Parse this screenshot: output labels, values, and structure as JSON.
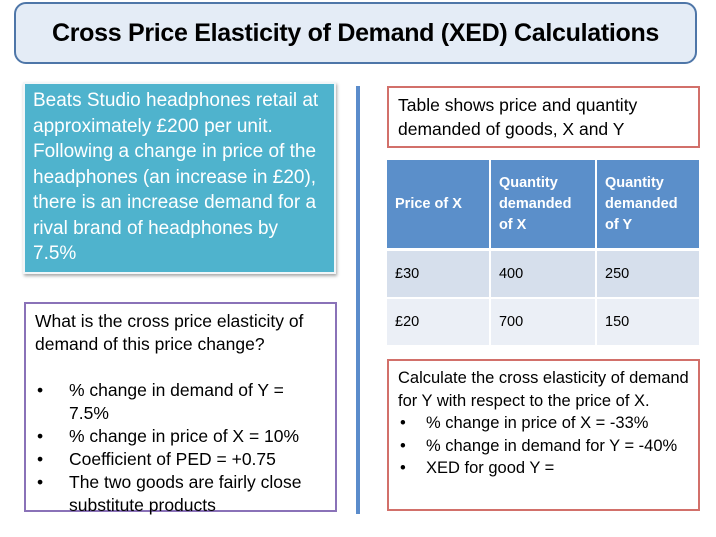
{
  "title": "Cross Price Elasticity of Demand (XED) Calculations",
  "scenario": {
    "text": "Beats Studio headphones retail at approximately £200 per unit. Following a change in price of the headphones (an increase in £20), there is an increase demand for a rival brand of headphones by 7.5%"
  },
  "question": {
    "text": "What is the cross price elasticity of demand of this price change?",
    "bullets": [
      "% change in demand of Y = 7.5%",
      "% change in price of X = 10%",
      "Coefficient of PED = +0.75",
      "The two goods are fairly close substitute products"
    ]
  },
  "table_caption": "Table shows price and quantity demanded of goods, X and Y",
  "table": {
    "headers": [
      "Price of X",
      "Quantity demanded of X",
      "Quantity demanded of Y"
    ],
    "rows": [
      [
        "£30",
        "400",
        "250"
      ],
      [
        "£20",
        "700",
        "150"
      ]
    ]
  },
  "exercise": {
    "text": "Calculate the cross elasticity of demand for Y with respect to the price of X.",
    "bullets": [
      "% change in price of X = -33%",
      "% change in demand for Y = -40%",
      "XED for good Y ="
    ]
  },
  "colors": {
    "title_bg": "#e4ecf6",
    "title_border": "#4e76a8",
    "scenario_bg": "#4fb3cd",
    "question_border": "#8a72b8",
    "red_border": "#d2706a",
    "table_header": "#5b8fca",
    "divider": "#5b8ccb"
  }
}
